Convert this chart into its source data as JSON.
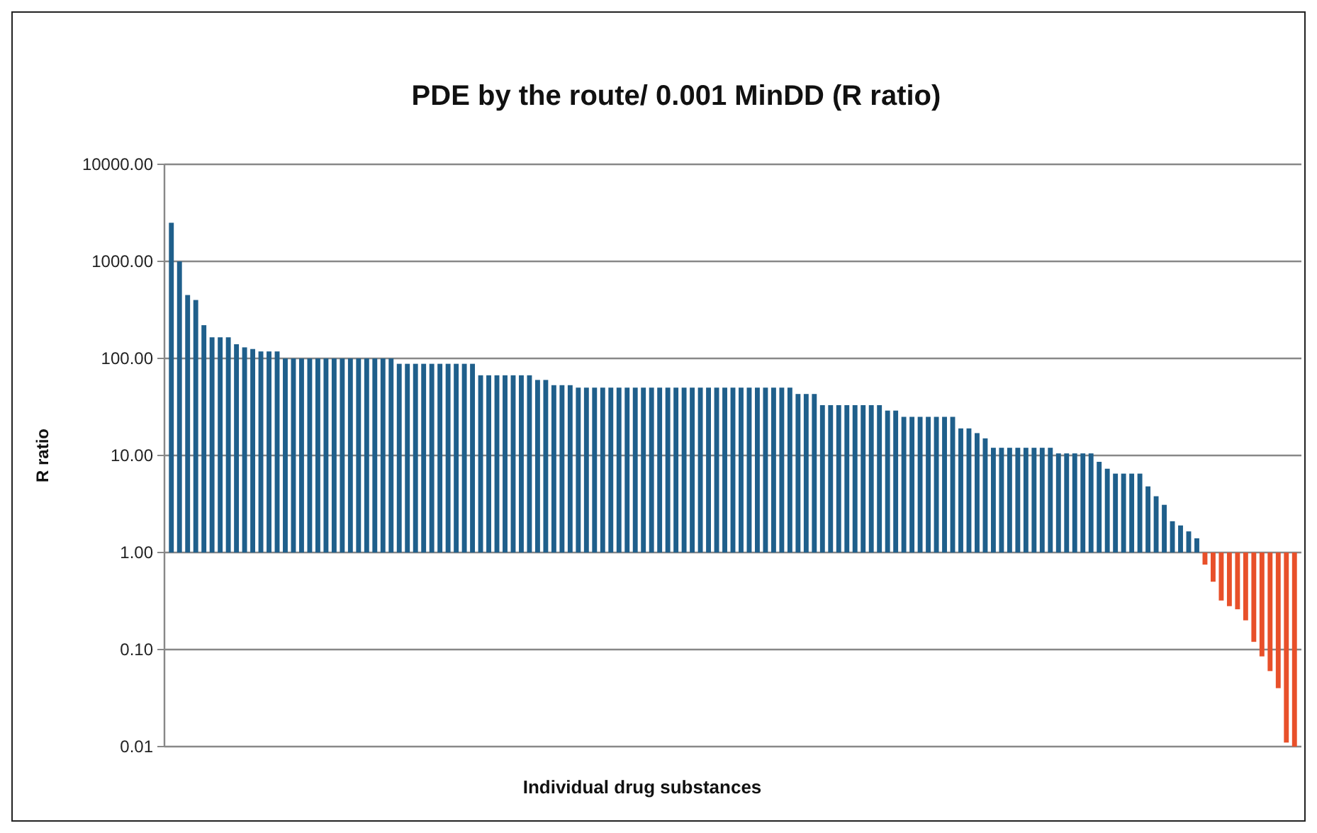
{
  "chart_data": {
    "type": "bar",
    "title": "PDE by the route/ 0.001 MinDD (R ratio)",
    "xlabel": "Individual drug substances",
    "ylabel": "R ratio",
    "log": "y",
    "grid": "y",
    "ylim": [
      0.01,
      10000
    ],
    "yticks": [
      {
        "value": 0.01,
        "label": "0.01"
      },
      {
        "value": 0.1,
        "label": "0.10"
      },
      {
        "value": 1,
        "label": "1.00"
      },
      {
        "value": 10,
        "label": "10.00"
      },
      {
        "value": 100,
        "label": "100.00"
      },
      {
        "value": 1000,
        "label": "1000.00"
      },
      {
        "value": 10000,
        "label": "10000.00"
      }
    ],
    "categories": [
      null,
      null,
      null,
      null,
      null,
      null,
      null,
      null,
      null,
      null,
      null,
      null,
      null,
      null,
      null,
      null,
      null,
      null,
      null,
      null,
      null,
      null,
      null,
      null,
      null,
      null,
      null,
      null,
      null,
      null,
      null,
      null,
      null,
      null,
      null,
      null,
      null,
      null,
      null,
      null,
      null,
      null,
      null,
      null,
      null,
      null,
      null,
      null,
      null,
      null,
      null,
      null,
      null,
      null,
      null,
      null,
      null,
      null,
      null,
      null,
      null,
      null,
      null,
      null,
      null,
      null,
      null,
      null,
      null,
      null,
      null,
      null,
      null,
      null,
      null,
      null,
      null,
      null,
      null,
      null,
      null,
      null,
      null,
      null,
      null,
      null,
      null,
      null,
      null,
      null,
      null,
      null,
      null,
      null,
      null,
      null,
      null,
      null,
      null,
      null,
      null,
      null,
      null,
      null,
      null,
      null,
      null,
      null,
      null,
      null,
      null,
      null,
      null,
      null,
      null,
      null,
      null,
      null,
      null,
      null,
      null,
      null,
      null,
      null,
      null,
      null,
      null,
      null,
      null,
      null,
      null,
      null,
      null,
      null,
      null,
      null,
      null,
      null,
      null
    ],
    "values": [
      2499,
      999,
      449,
      399,
      219,
      164,
      164,
      164,
      139,
      129,
      124,
      117,
      117,
      117,
      99,
      99,
      99,
      99,
      99,
      99,
      99,
      99,
      99,
      99,
      99,
      99,
      99,
      99,
      87,
      87,
      87,
      87,
      87,
      87,
      87,
      87,
      87,
      87,
      66,
      66,
      66,
      66,
      66,
      66,
      66,
      59,
      59,
      52,
      52,
      52,
      49,
      49,
      49,
      49,
      49,
      49,
      49,
      49,
      49,
      49,
      49,
      49,
      49,
      49,
      49,
      49,
      49,
      49,
      49,
      49,
      49,
      49,
      49,
      49,
      49,
      49,
      49,
      42,
      42,
      42,
      32,
      32,
      32,
      32,
      32,
      32,
      32,
      32,
      28,
      28,
      24,
      24,
      24,
      24,
      24,
      24,
      24,
      18,
      18,
      16,
      14,
      11,
      11,
      11,
      11,
      11,
      11,
      11,
      11,
      9.5,
      9.5,
      9.5,
      9.5,
      9.5,
      7.6,
      6.3,
      5.5,
      5.5,
      5.5,
      5.5,
      3.8,
      2.8,
      2.1,
      1.1,
      0.9,
      0.65,
      0.4,
      -0.25,
      -0.5,
      -0.68,
      -0.72,
      -0.74,
      -0.8,
      -0.88,
      -0.915,
      -0.94,
      -0.96,
      -0.989,
      -0.99
    ],
    "base": [
      1,
      1,
      1,
      1,
      1,
      1,
      1,
      1,
      1,
      1,
      1,
      1,
      1,
      1,
      1,
      1,
      1,
      1,
      1,
      1,
      1,
      1,
      1,
      1,
      1,
      1,
      1,
      1,
      1,
      1,
      1,
      1,
      1,
      1,
      1,
      1,
      1,
      1,
      1,
      1,
      1,
      1,
      1,
      1,
      1,
      1,
      1,
      1,
      1,
      1,
      1,
      1,
      1,
      1,
      1,
      1,
      1,
      1,
      1,
      1,
      1,
      1,
      1,
      1,
      1,
      1,
      1,
      1,
      1,
      1,
      1,
      1,
      1,
      1,
      1,
      1,
      1,
      1,
      1,
      1,
      1,
      1,
      1,
      1,
      1,
      1,
      1,
      1,
      1,
      1,
      1,
      1,
      1,
      1,
      1,
      1,
      1,
      1,
      1,
      1,
      1,
      1,
      1,
      1,
      1,
      1,
      1,
      1,
      1,
      1,
      1,
      1,
      1,
      1,
      1,
      1,
      1,
      1,
      1,
      1,
      1,
      1,
      1,
      1,
      1,
      1,
      1,
      1,
      1,
      1,
      1,
      1,
      1,
      1,
      1,
      1,
      1,
      1,
      1
    ],
    "colors": [
      "#1f5f8b",
      "#1f5f8b",
      "#1f5f8b",
      "#1f5f8b",
      "#1f5f8b",
      "#1f5f8b",
      "#1f5f8b",
      "#1f5f8b",
      "#1f5f8b",
      "#1f5f8b",
      "#1f5f8b",
      "#1f5f8b",
      "#1f5f8b",
      "#1f5f8b",
      "#1f5f8b",
      "#1f5f8b",
      "#1f5f8b",
      "#1f5f8b",
      "#1f5f8b",
      "#1f5f8b",
      "#1f5f8b",
      "#1f5f8b",
      "#1f5f8b",
      "#1f5f8b",
      "#1f5f8b",
      "#1f5f8b",
      "#1f5f8b",
      "#1f5f8b",
      "#1f5f8b",
      "#1f5f8b",
      "#1f5f8b",
      "#1f5f8b",
      "#1f5f8b",
      "#1f5f8b",
      "#1f5f8b",
      "#1f5f8b",
      "#1f5f8b",
      "#1f5f8b",
      "#1f5f8b",
      "#1f5f8b",
      "#1f5f8b",
      "#1f5f8b",
      "#1f5f8b",
      "#1f5f8b",
      "#1f5f8b",
      "#1f5f8b",
      "#1f5f8b",
      "#1f5f8b",
      "#1f5f8b",
      "#1f5f8b",
      "#1f5f8b",
      "#1f5f8b",
      "#1f5f8b",
      "#1f5f8b",
      "#1f5f8b",
      "#1f5f8b",
      "#1f5f8b",
      "#1f5f8b",
      "#1f5f8b",
      "#1f5f8b",
      "#1f5f8b",
      "#1f5f8b",
      "#1f5f8b",
      "#1f5f8b",
      "#1f5f8b",
      "#1f5f8b",
      "#1f5f8b",
      "#1f5f8b",
      "#1f5f8b",
      "#1f5f8b",
      "#1f5f8b",
      "#1f5f8b",
      "#1f5f8b",
      "#1f5f8b",
      "#1f5f8b",
      "#1f5f8b",
      "#1f5f8b",
      "#1f5f8b",
      "#1f5f8b",
      "#1f5f8b",
      "#1f5f8b",
      "#1f5f8b",
      "#1f5f8b",
      "#1f5f8b",
      "#1f5f8b",
      "#1f5f8b",
      "#1f5f8b",
      "#1f5f8b",
      "#1f5f8b",
      "#1f5f8b",
      "#1f5f8b",
      "#1f5f8b",
      "#1f5f8b",
      "#1f5f8b",
      "#1f5f8b",
      "#1f5f8b",
      "#1f5f8b",
      "#1f5f8b",
      "#1f5f8b",
      "#1f5f8b",
      "#1f5f8b",
      "#1f5f8b",
      "#1f5f8b",
      "#1f5f8b",
      "#1f5f8b",
      "#1f5f8b",
      "#1f5f8b",
      "#1f5f8b",
      "#1f5f8b",
      "#1f5f8b",
      "#1f5f8b",
      "#1f5f8b",
      "#1f5f8b",
      "#1f5f8b",
      "#1f5f8b",
      "#1f5f8b",
      "#1f5f8b",
      "#1f5f8b",
      "#1f5f8b",
      "#1f5f8b",
      "#1f5f8b",
      "#1f5f8b",
      "#1f5f8b",
      "#1f5f8b",
      "#1f5f8b",
      "#1f5f8b",
      "#1f5f8b",
      "#e8502a",
      "#e8502a",
      "#e8502a",
      "#e8502a",
      "#e8502a",
      "#e8502a",
      "#e8502a",
      "#e8502a",
      "#e8502a",
      "#e8502a",
      "#e8502a",
      "#e8502a"
    ]
  }
}
